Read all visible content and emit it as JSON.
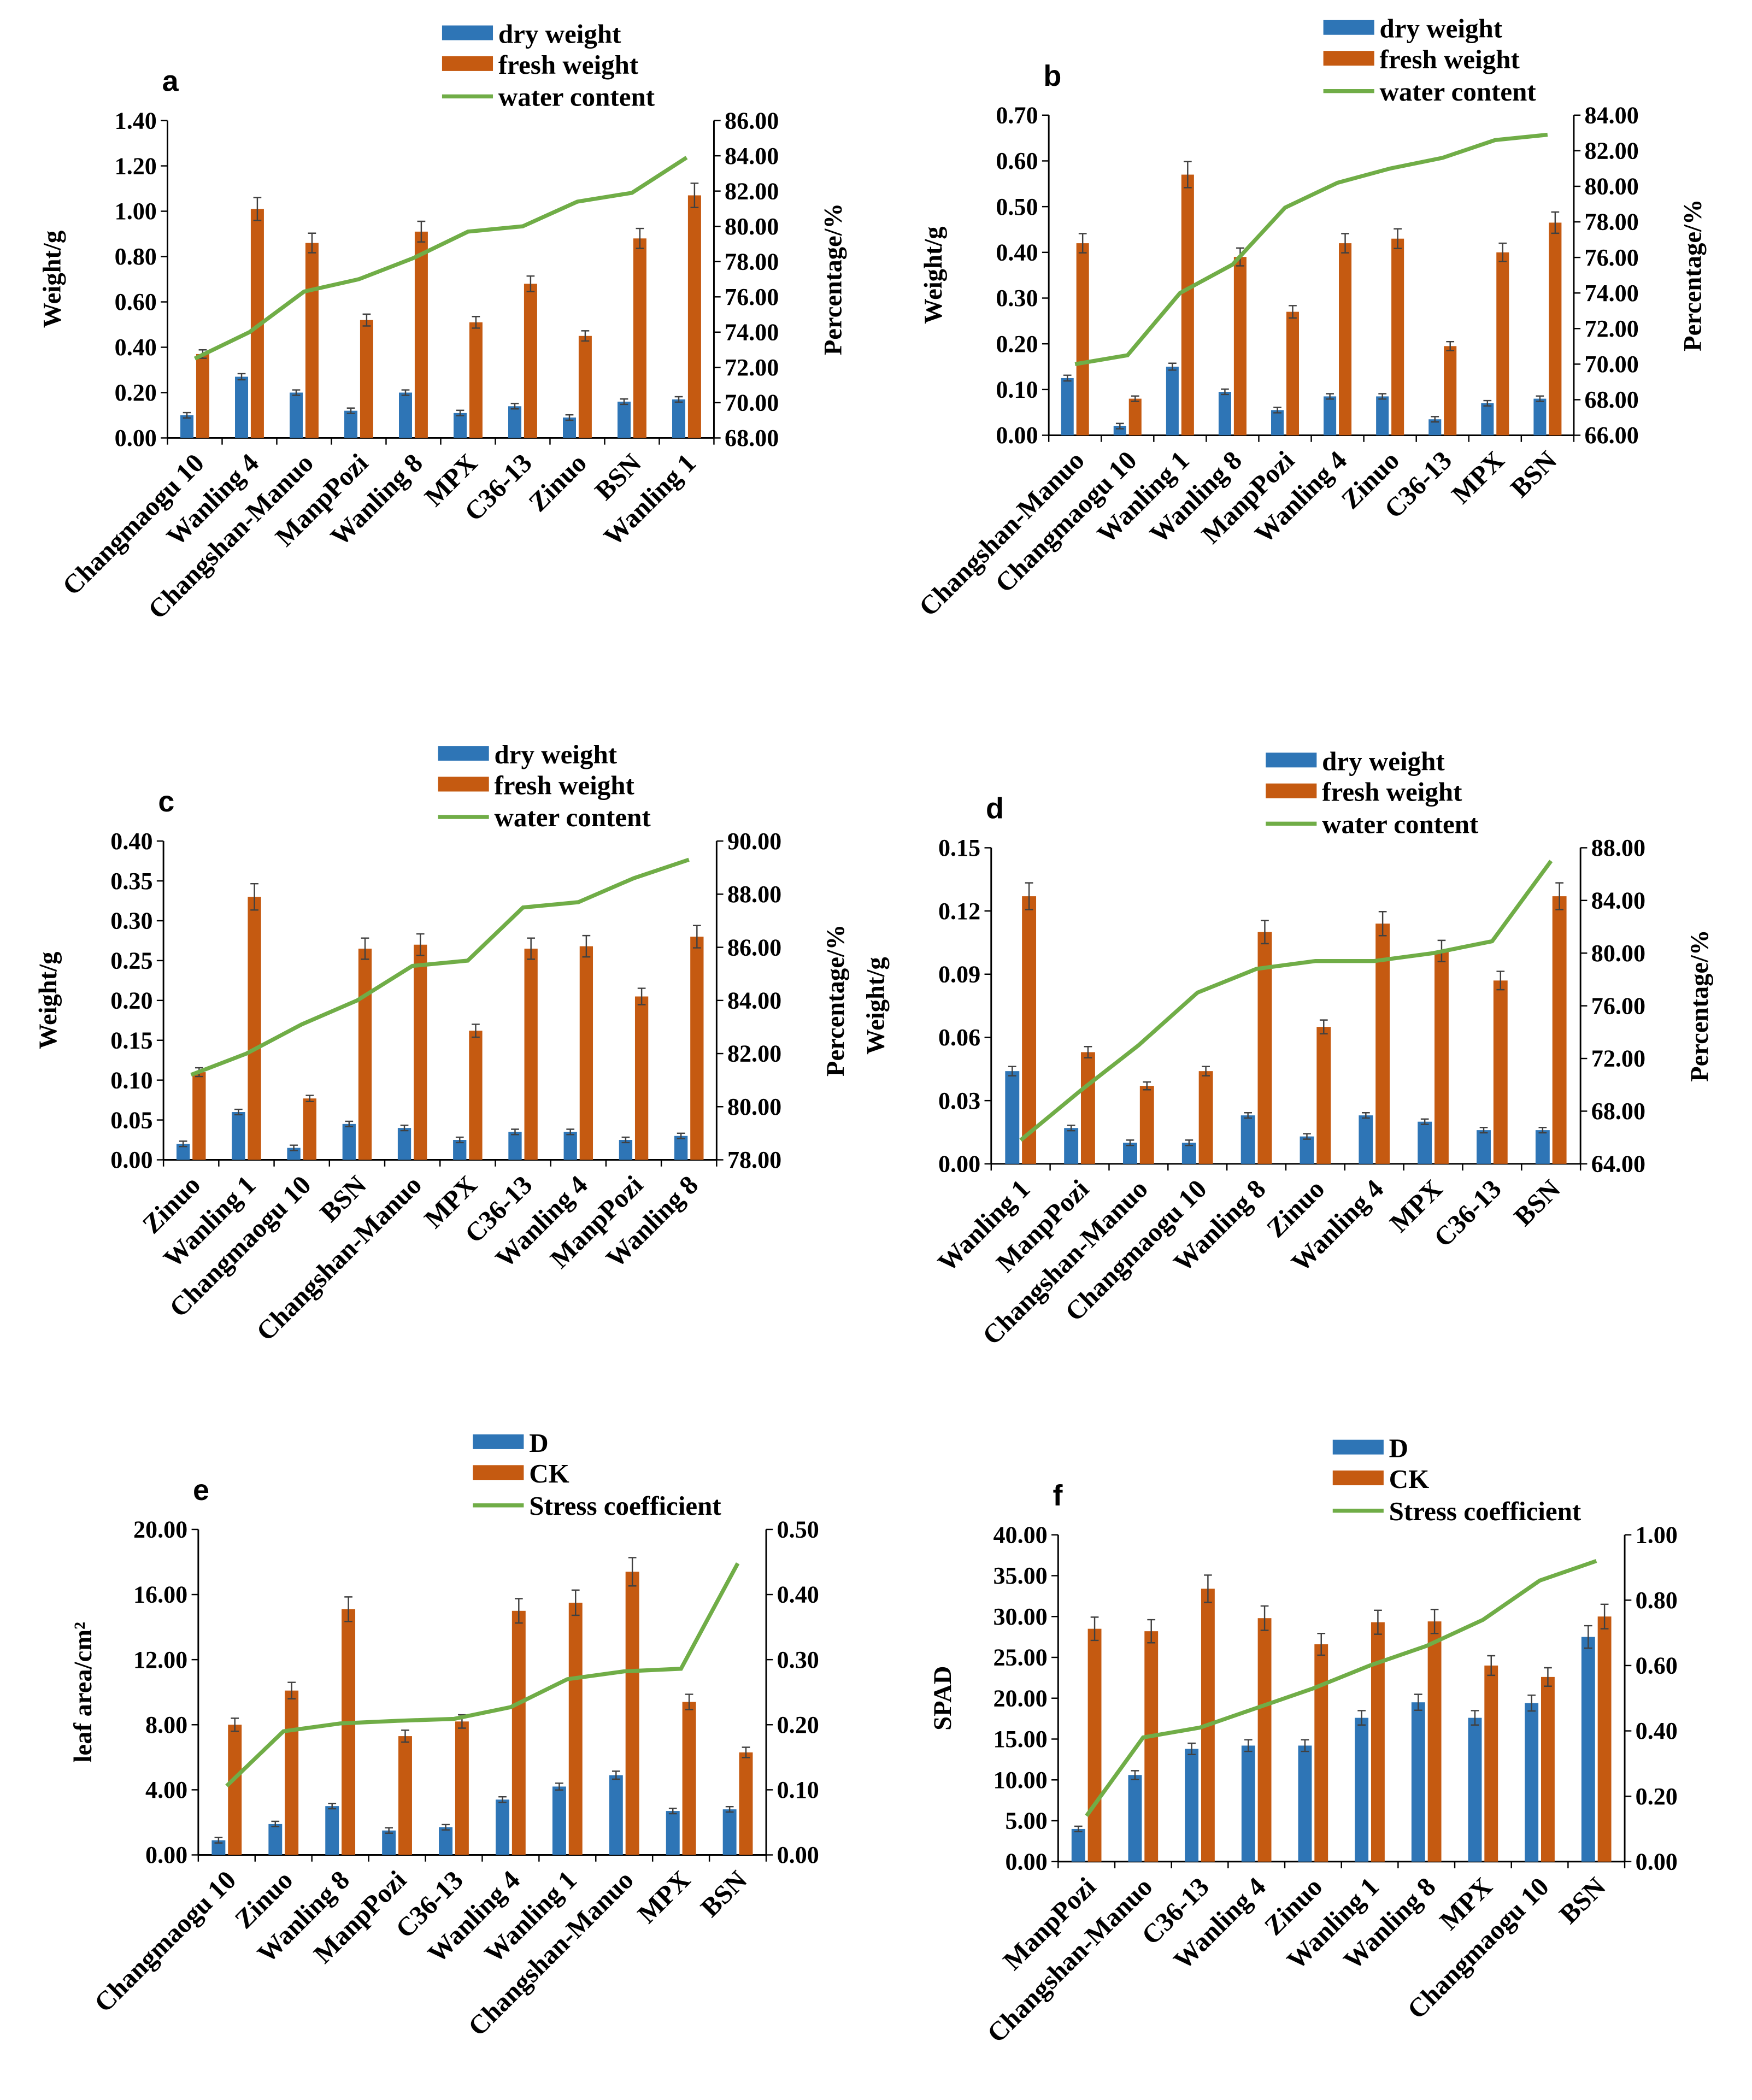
{
  "colors": {
    "series1": "#2E75B6",
    "series2": "#C55A11",
    "line": "#70AD47",
    "axis": "#000000",
    "error": "#404040"
  },
  "chart_data": [
    {
      "panel": "a",
      "type": "bar+line",
      "legend": [
        "dry weight",
        "fresh weight",
        "water content"
      ],
      "ylabel": "Weight/g",
      "y2label": "Percentage/%",
      "ylim": [
        0,
        1.4
      ],
      "y2lim": [
        68,
        86
      ],
      "y_ticks": [
        "0.00",
        "0.20",
        "0.40",
        "0.60",
        "0.80",
        "1.00",
        "1.20",
        "1.40"
      ],
      "y2_ticks": [
        "68.00",
        "70.00",
        "72.00",
        "74.00",
        "76.00",
        "78.00",
        "80.00",
        "82.00",
        "84.00",
        "86.00"
      ],
      "categories": [
        "Changmaogu 10",
        "Wanling 4",
        "Changshan-Manuo",
        "ManpPozi",
        "Wanling 8",
        "MPX",
        "C36-13",
        "Zinuo",
        "BSN",
        "Wanling 1"
      ],
      "series": [
        {
          "name": "dry weight",
          "values": [
            0.1,
            0.27,
            0.2,
            0.12,
            0.2,
            0.11,
            0.14,
            0.09,
            0.16,
            0.17
          ]
        },
        {
          "name": "fresh weight",
          "values": [
            0.37,
            1.01,
            0.86,
            0.52,
            0.91,
            0.51,
            0.68,
            0.45,
            0.88,
            1.07
          ]
        },
        {
          "name": "water content",
          "axis": "right",
          "values": [
            72.5,
            74.0,
            76.3,
            77.0,
            78.2,
            79.7,
            80.0,
            81.4,
            81.9,
            83.9
          ]
        }
      ]
    },
    {
      "panel": "b",
      "type": "bar+line",
      "legend": [
        "dry weight",
        "fresh weight",
        "water content"
      ],
      "ylabel": "Weight/g",
      "y2label": "Percentage/%",
      "ylim": [
        0,
        0.7
      ],
      "y2lim": [
        66,
        84
      ],
      "y_ticks": [
        "0.00",
        "0.10",
        "0.20",
        "0.30",
        "0.40",
        "0.50",
        "0.60",
        "0.70"
      ],
      "y2_ticks": [
        "66.00",
        "68.00",
        "70.00",
        "72.00",
        "74.00",
        "76.00",
        "78.00",
        "80.00",
        "82.00",
        "84.00"
      ],
      "categories": [
        "Changshan-Manuo",
        "Changmaogu 10",
        "Wanling 1",
        "Wanling 8",
        "ManpPozi",
        "Wanling 4",
        "Zinuo",
        "C36-13",
        "MPX",
        "BSN"
      ],
      "series": [
        {
          "name": "dry weight",
          "values": [
            0.125,
            0.02,
            0.15,
            0.095,
            0.055,
            0.085,
            0.085,
            0.035,
            0.07,
            0.08
          ]
        },
        {
          "name": "fresh weight",
          "values": [
            0.42,
            0.08,
            0.57,
            0.39,
            0.27,
            0.42,
            0.43,
            0.195,
            0.4,
            0.465
          ]
        },
        {
          "name": "water content",
          "axis": "right",
          "values": [
            70.0,
            70.5,
            74.0,
            75.6,
            78.8,
            80.2,
            81.0,
            81.6,
            82.6,
            82.9
          ]
        }
      ]
    },
    {
      "panel": "c",
      "type": "bar+line",
      "legend": [
        "dry weight",
        "fresh weight",
        "water content"
      ],
      "ylabel": "Weight/g",
      "y2label": "Percentage/%",
      "ylim": [
        0,
        0.4
      ],
      "y2lim": [
        78,
        90
      ],
      "y_ticks": [
        "0.00",
        "0.05",
        "0.10",
        "0.15",
        "0.20",
        "0.25",
        "0.30",
        "0.35",
        "0.40"
      ],
      "y2_ticks": [
        "78.00",
        "80.00",
        "82.00",
        "84.00",
        "86.00",
        "88.00",
        "90.00"
      ],
      "categories": [
        "Zinuo",
        "Wanling 1",
        "Changmaogu 10",
        "BSN",
        "Changshan-Manuo",
        "MPX",
        "C36-13",
        "Wanling 4",
        "ManpPozi",
        "Wanling 8"
      ],
      "series": [
        {
          "name": "dry weight",
          "values": [
            0.02,
            0.06,
            0.015,
            0.045,
            0.04,
            0.025,
            0.035,
            0.035,
            0.025,
            0.03
          ]
        },
        {
          "name": "fresh weight",
          "values": [
            0.11,
            0.33,
            0.077,
            0.265,
            0.27,
            0.162,
            0.265,
            0.268,
            0.205,
            0.28
          ]
        },
        {
          "name": "water content",
          "axis": "right",
          "values": [
            81.2,
            82.0,
            83.1,
            84.0,
            85.3,
            85.5,
            87.5,
            87.7,
            88.6,
            89.3
          ]
        }
      ]
    },
    {
      "panel": "d",
      "type": "bar+line",
      "legend": [
        "dry weight",
        "fresh weight",
        "water content"
      ],
      "ylabel": "Weight/g",
      "y2label": "Percentage/%",
      "ylim": [
        0,
        0.15
      ],
      "y2lim": [
        64,
        88
      ],
      "y_ticks": [
        "0.00",
        "0.03",
        "0.06",
        "0.09",
        "0.12",
        "0.15"
      ],
      "y2_ticks": [
        "64.00",
        "68.00",
        "72.00",
        "76.00",
        "80.00",
        "84.00",
        "88.00"
      ],
      "categories": [
        "Wanling 1",
        "ManpPozi",
        "Changshan-Manuo",
        "Changmaogu 10",
        "Wanling 8",
        "Zinuo",
        "Wanling 4",
        "MPX",
        "C36-13",
        "BSN"
      ],
      "series": [
        {
          "name": "dry weight",
          "values": [
            0.044,
            0.017,
            0.01,
            0.01,
            0.023,
            0.013,
            0.023,
            0.02,
            0.016,
            0.016
          ]
        },
        {
          "name": "fresh weight",
          "values": [
            0.127,
            0.053,
            0.037,
            0.044,
            0.11,
            0.065,
            0.114,
            0.101,
            0.087,
            0.127
          ]
        },
        {
          "name": "water content",
          "axis": "right",
          "values": [
            65.8,
            69.5,
            73.0,
            77.0,
            78.8,
            79.4,
            79.4,
            80.0,
            80.9,
            87.0
          ]
        }
      ]
    },
    {
      "panel": "e",
      "type": "bar+line",
      "legend": [
        "D",
        "CK",
        "Stress coefficient"
      ],
      "ylabel": "leaf area/cm²",
      "y2label": "",
      "ylim": [
        0,
        20
      ],
      "y2lim": [
        0,
        0.5
      ],
      "y_ticks": [
        "0.00",
        "4.00",
        "8.00",
        "12.00",
        "16.00",
        "20.00"
      ],
      "y2_ticks": [
        "0.00",
        "0.10",
        "0.20",
        "0.30",
        "0.40",
        "0.50"
      ],
      "categories": [
        "Changmaogu 10",
        "Zinuo",
        "Wanling 8",
        "ManpPozi",
        "C36-13",
        "Wanling 4",
        "Wanling 1",
        "Changshan-Manuo",
        "MPX",
        "BSN"
      ],
      "series": [
        {
          "name": "D",
          "values": [
            0.9,
            1.9,
            3.0,
            1.5,
            1.7,
            3.4,
            4.2,
            4.9,
            2.7,
            2.8
          ]
        },
        {
          "name": "CK",
          "values": [
            8.0,
            10.1,
            15.1,
            7.3,
            8.2,
            15.0,
            15.5,
            17.4,
            9.4,
            6.3
          ]
        },
        {
          "name": "Stress coefficient",
          "axis": "right",
          "values": [
            0.106,
            0.19,
            0.202,
            0.206,
            0.209,
            0.227,
            0.27,
            0.282,
            0.286,
            0.448
          ]
        }
      ]
    },
    {
      "panel": "f",
      "type": "bar+line",
      "legend": [
        "D",
        "CK",
        "Stress coefficient"
      ],
      "ylabel": "SPAD",
      "y2label": "",
      "ylim": [
        0,
        40
      ],
      "y2lim": [
        0,
        1
      ],
      "y_ticks": [
        "0.00",
        "5.00",
        "10.00",
        "15.00",
        "20.00",
        "25.00",
        "30.00",
        "35.00",
        "40.00"
      ],
      "y2_ticks": [
        "0.00",
        "0.20",
        "0.40",
        "0.60",
        "0.80",
        "1.00"
      ],
      "categories": [
        "ManpPozi",
        "Changshan-Manuo",
        "C36-13",
        "Wanling 4",
        "Zinuo",
        "Wanling 1",
        "Wanling 8",
        "MPX",
        "Changmaogu 10",
        "BSN"
      ],
      "series": [
        {
          "name": "D",
          "values": [
            4.0,
            10.6,
            13.8,
            14.2,
            14.2,
            17.6,
            19.5,
            17.6,
            19.4,
            27.5
          ]
        },
        {
          "name": "CK",
          "values": [
            28.5,
            28.2,
            33.4,
            29.8,
            26.6,
            29.3,
            29.4,
            24.0,
            22.6,
            30.0
          ]
        },
        {
          "name": "Stress coefficient",
          "axis": "right",
          "values": [
            0.14,
            0.38,
            0.41,
            0.47,
            0.53,
            0.6,
            0.66,
            0.74,
            0.86,
            0.92
          ]
        }
      ]
    }
  ]
}
